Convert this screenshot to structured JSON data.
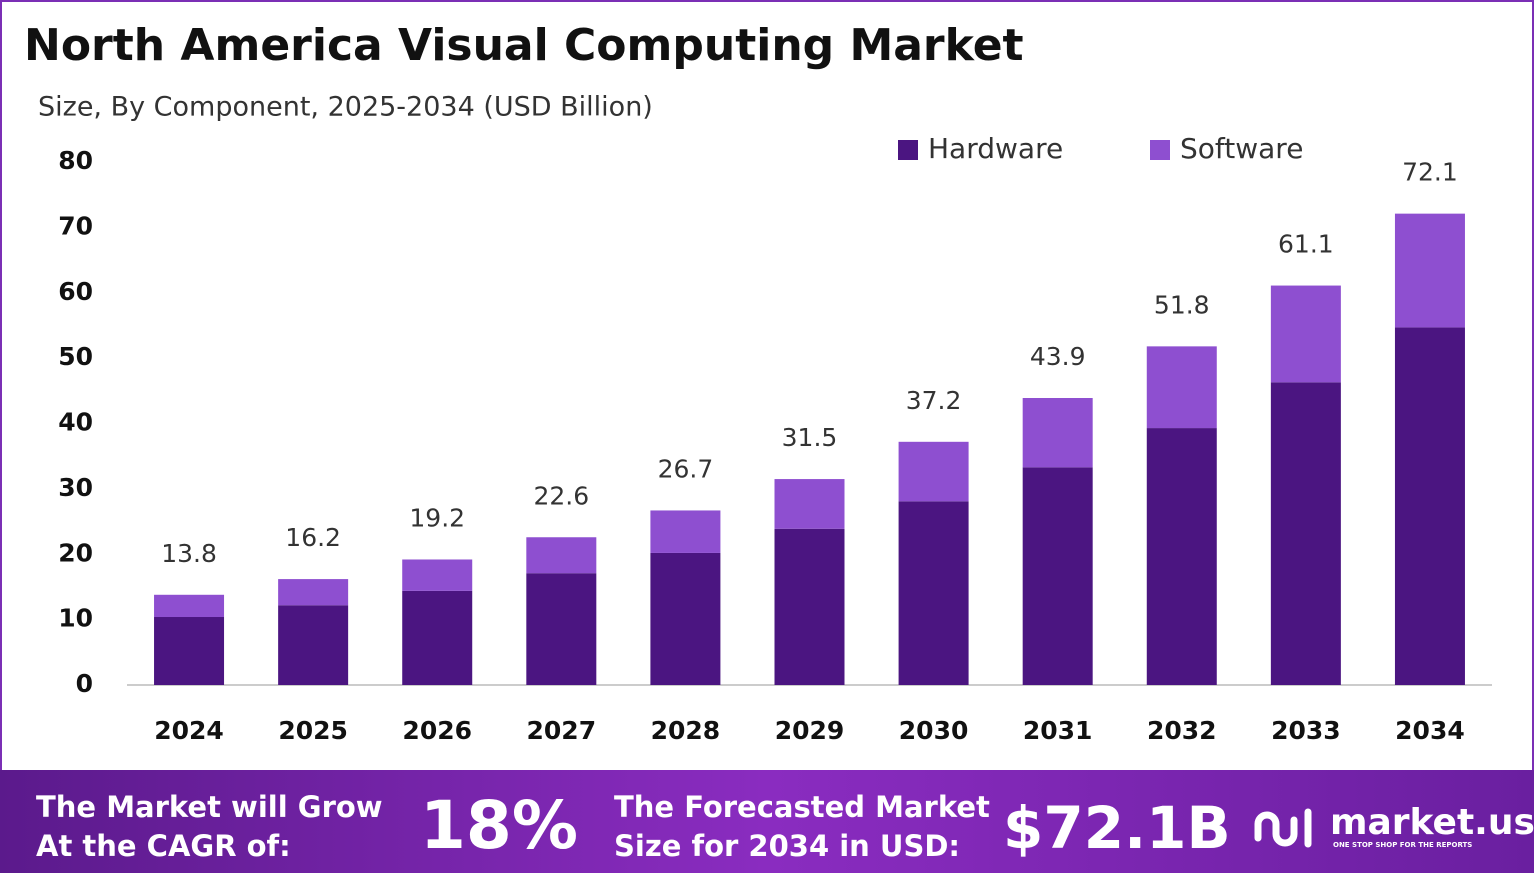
{
  "chart_data": {
    "type": "stacked-bar",
    "title": "North America Visual Computing Market",
    "subtitle": "Size, By Component, 2025-2034 (USD Billion)",
    "categories": [
      "2024",
      "2025",
      "2026",
      "2027",
      "2028",
      "2029",
      "2030",
      "2031",
      "2032",
      "2033",
      "2034"
    ],
    "series": [
      {
        "name": "Hardware",
        "color": "#4b1581",
        "values": [
          10.4,
          12.2,
          14.4,
          17.1,
          20.2,
          23.9,
          28.1,
          33.3,
          39.3,
          46.3,
          54.7
        ]
      },
      {
        "name": "Software",
        "color": "#8e4fd0",
        "values": [
          3.4,
          4.0,
          4.8,
          5.5,
          6.5,
          7.6,
          9.1,
          10.6,
          12.5,
          14.8,
          17.4
        ]
      }
    ],
    "totals": [
      13.8,
      16.2,
      19.2,
      22.6,
      26.7,
      31.5,
      37.2,
      43.9,
      51.8,
      61.1,
      72.1
    ],
    "ylim": [
      0,
      80
    ],
    "yticks": [
      0,
      10,
      20,
      30,
      40,
      50,
      60,
      70,
      80
    ],
    "grid": false,
    "legend": "top-right"
  },
  "footer": {
    "cagr_text": [
      "The Market will Grow",
      "At the CAGR of:"
    ],
    "cagr_value": "18%",
    "forecast_text": [
      "The Forecasted Market",
      "Size for 2034 in USD:"
    ],
    "forecast_value": "$72.1B",
    "brand": "market.us",
    "tagline": "ONE STOP SHOP FOR THE REPORTS"
  }
}
